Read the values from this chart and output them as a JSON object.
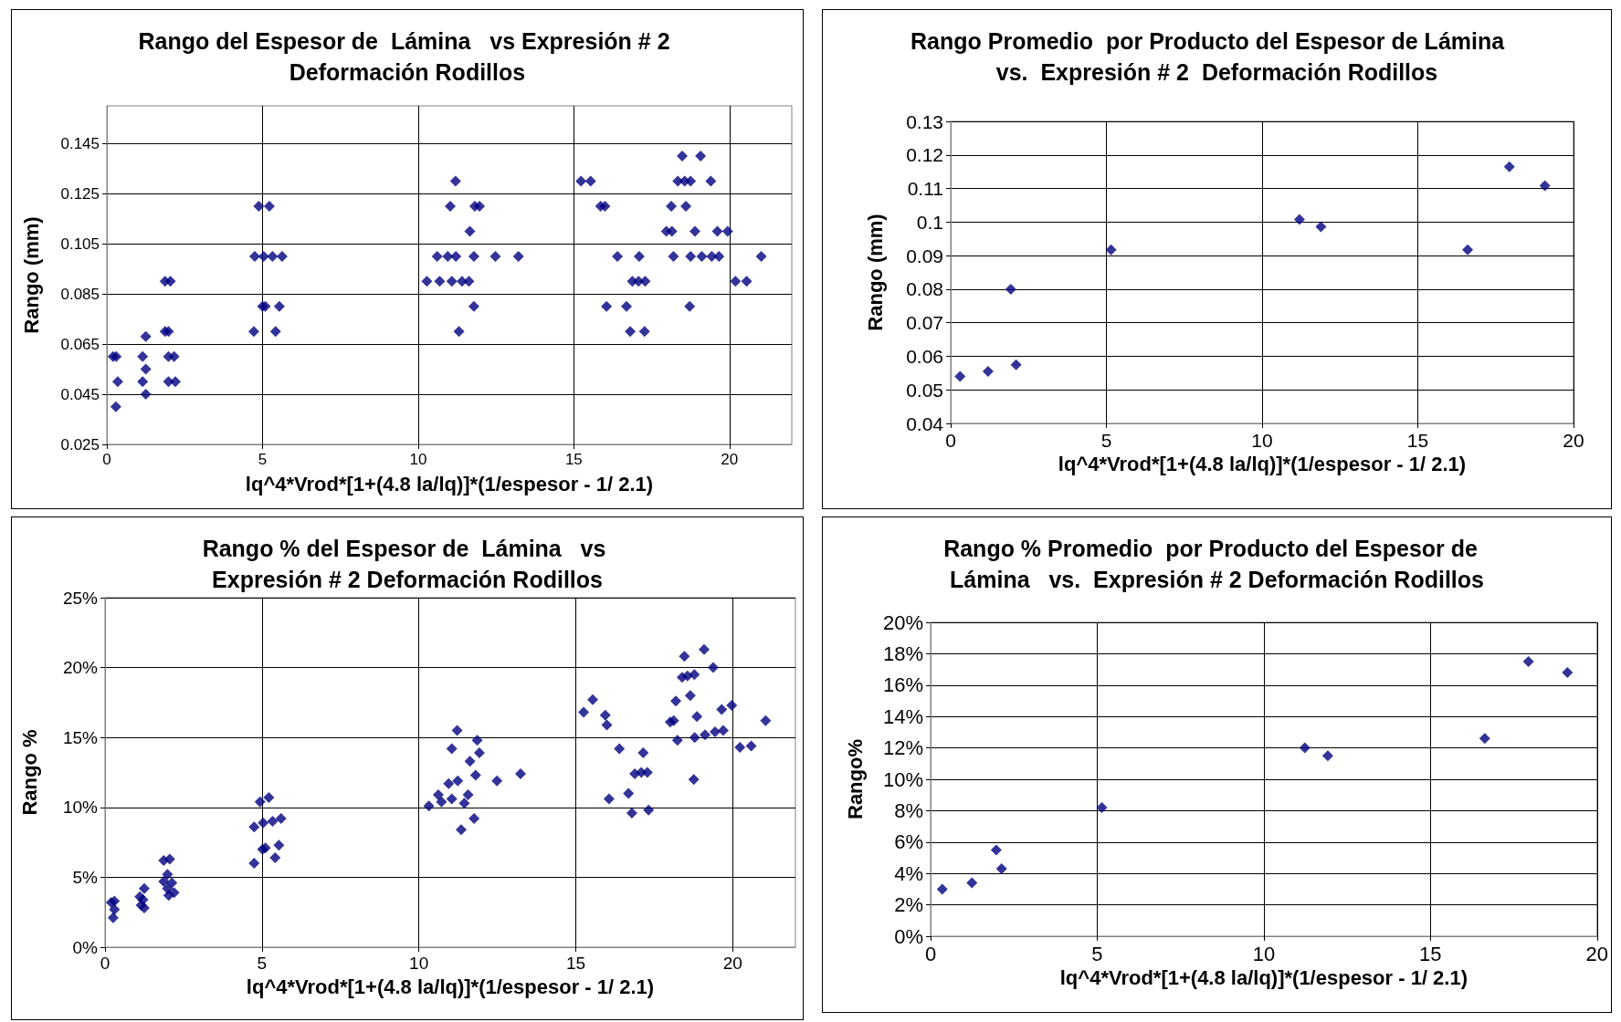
{
  "chart_data": [
    {
      "type": "scatter",
      "title": "Rango del Espesor de  Lámina   vs Expresión # 2 Deformación Rodillos",
      "xlabel": "lq^4*Vrod*[1+(4.8 la/lq)]*(1/espesor - 1/ 2.1)",
      "ylabel": "Rango (mm)",
      "color": "#000080",
      "marker": "diamond",
      "grid": true,
      "xlim": [
        0,
        22
      ],
      "xticks": [
        0,
        5,
        10,
        15,
        20
      ],
      "ylim": [
        0.025,
        0.16
      ],
      "yticks": [
        0.025,
        0.045,
        0.065,
        0.085,
        0.105,
        0.125,
        0.145
      ],
      "x": [
        0.2,
        0.3,
        0.35,
        0.29,
        1.15,
        1.15,
        1.25,
        1.25,
        1.25,
        1.87,
        2.04,
        1.87,
        1.98,
        1.98,
        2.16,
        1.98,
        2.2,
        4.88,
        5.22,
        4.75,
        5.04,
        5.32,
        5.63,
        5.0,
        5.09,
        5.54,
        4.72,
        5.42,
        11.2,
        11.03,
        11.82,
        11.97,
        11.66,
        10.61,
        10.95,
        11.21,
        11.79,
        12.48,
        13.22,
        10.28,
        10.69,
        11.08,
        11.41,
        11.63,
        11.79,
        11.31,
        15.23,
        15.54,
        18.34,
        18.56,
        18.75,
        19.4,
        18.48,
        19.07,
        15.86,
        16.0,
        18.13,
        18.6,
        17.97,
        18.15,
        18.89,
        19.61,
        19.94,
        16.4,
        17.1,
        18.2,
        18.75,
        19.11,
        19.43,
        19.66,
        21.02,
        16.88,
        17.08,
        17.29,
        20.19,
        20.55,
        16.05,
        16.69,
        18.72,
        16.81,
        17.27
      ],
      "values": [
        0.06,
        0.06,
        0.05,
        0.04,
        0.06,
        0.05,
        0.055,
        0.068,
        0.045,
        0.09,
        0.09,
        0.07,
        0.07,
        0.06,
        0.06,
        0.05,
        0.05,
        0.12,
        0.12,
        0.1,
        0.1,
        0.1,
        0.1,
        0.08,
        0.08,
        0.08,
        0.07,
        0.07,
        0.13,
        0.12,
        0.12,
        0.12,
        0.11,
        0.1,
        0.1,
        0.1,
        0.1,
        0.1,
        0.1,
        0.09,
        0.09,
        0.09,
        0.09,
        0.09,
        0.08,
        0.07,
        0.13,
        0.13,
        0.13,
        0.13,
        0.13,
        0.13,
        0.14,
        0.14,
        0.12,
        0.12,
        0.12,
        0.12,
        0.11,
        0.11,
        0.11,
        0.11,
        0.11,
        0.1,
        0.1,
        0.1,
        0.1,
        0.1,
        0.1,
        0.1,
        0.1,
        0.09,
        0.09,
        0.09,
        0.09,
        0.09,
        0.08,
        0.08,
        0.08,
        0.07,
        0.07
      ]
    },
    {
      "type": "scatter",
      "title": "Rango Promedio  por Producto del Espesor de Lámina   vs.  Expresión # 2  Deformación Rodillos",
      "xlabel": "lq^4*Vrod*[1+(4.8 la/lq)]*(1/espesor - 1/ 2.1)",
      "ylabel": "Rango (mm)",
      "color": "#000080",
      "marker": "diamond",
      "grid": true,
      "xlim": [
        0,
        20
      ],
      "xticks": [
        0,
        5,
        10,
        15,
        20
      ],
      "ylim": [
        0.04,
        0.13
      ],
      "yticks": [
        0.04,
        0.05,
        0.06,
        0.07,
        0.08,
        0.09,
        0.1,
        0.11,
        0.12,
        0.13
      ],
      "x": [
        0.3,
        1.2,
        1.93,
        2.1,
        5.15,
        11.2,
        11.89,
        16.6,
        17.94,
        19.08
      ],
      "values": [
        0.054,
        0.0555,
        0.08,
        0.0575,
        0.0917,
        0.1008,
        0.0986,
        0.0917,
        0.1165,
        0.1108
      ]
    },
    {
      "type": "scatter",
      "title": "Rango % del Espesor de  Lámina   vs Expresión # 2 Deformación Rodillos",
      "xlabel": "lq^4*Vrod*[1+(4.8 la/lq)]*(1/espesor - 1/ 2.1)",
      "ylabel": "Rango %",
      "color": "#000080",
      "marker": "diamond",
      "grid": true,
      "xlim": [
        0,
        22
      ],
      "xticks": [
        0,
        5,
        10,
        15,
        20
      ],
      "ylim": [
        0,
        0.25
      ],
      "yticks": [
        {
          "value": 0,
          "label": "0%"
        },
        {
          "value": 0.05,
          "label": "5%"
        },
        {
          "value": 0.1,
          "label": "10%"
        },
        {
          "value": 0.15,
          "label": "15%"
        },
        {
          "value": 0.2,
          "label": "20%"
        },
        {
          "value": 0.25,
          "label": "25%"
        }
      ],
      "x": [
        0.2,
        0.3,
        0.3,
        0.26,
        1.11,
        1.25,
        1.21,
        1.25,
        1.15,
        1.87,
        2.06,
        1.99,
        1.87,
        2.13,
        1.99,
        2.03,
        2.2,
        4.94,
        5.22,
        4.75,
        5.04,
        5.34,
        5.61,
        5.02,
        5.11,
        5.54,
        4.75,
        5.42,
        11.22,
        11.05,
        11.86,
        11.93,
        11.63,
        11.81,
        12.49,
        13.24,
        10.95,
        11.24,
        10.62,
        10.72,
        11.05,
        11.57,
        11.45,
        10.32,
        11.76,
        11.35,
        15.25,
        15.54,
        15.94,
        15.99,
        16.39,
        17.15,
        16.88,
        17.09,
        17.28,
        16.06,
        16.68,
        16.79,
        17.32,
        18.46,
        19.09,
        19.38,
        18.39,
        18.56,
        18.78,
        18.65,
        18.19,
        18.01,
        18.12,
        18.86,
        18.24,
        19.65,
        19.97,
        18.79,
        19.12,
        19.44,
        19.7,
        18.76,
        20.23,
        20.59,
        21.05
      ],
      "values": [
        0.032,
        0.033,
        0.027,
        0.021,
        0.036,
        0.042,
        0.034,
        0.028,
        0.03,
        0.062,
        0.063,
        0.052,
        0.047,
        0.046,
        0.042,
        0.037,
        0.039,
        0.104,
        0.107,
        0.086,
        0.089,
        0.09,
        0.092,
        0.07,
        0.071,
        0.073,
        0.06,
        0.064,
        0.155,
        0.142,
        0.148,
        0.139,
        0.133,
        0.123,
        0.119,
        0.124,
        0.117,
        0.119,
        0.109,
        0.104,
        0.106,
        0.109,
        0.103,
        0.101,
        0.092,
        0.084,
        0.168,
        0.177,
        0.166,
        0.159,
        0.142,
        0.139,
        0.124,
        0.125,
        0.125,
        0.106,
        0.11,
        0.096,
        0.098,
        0.208,
        0.213,
        0.2,
        0.193,
        0.194,
        0.195,
        0.18,
        0.176,
        0.161,
        0.162,
        0.165,
        0.148,
        0.17,
        0.173,
        0.15,
        0.152,
        0.154,
        0.155,
        0.12,
        0.143,
        0.144,
        0.162
      ]
    },
    {
      "type": "scatter",
      "title": "Rango % Promedio  por Producto del Espesor de  Lámina   vs.  Expresión # 2 Deformación Rodillos",
      "xlabel": "lq^4*Vrod*[1+(4.8 la/lq)]*(1/espesor - 1/ 2.1)",
      "ylabel": "Rango%",
      "color": "#000080",
      "marker": "diamond",
      "grid": true,
      "xlim": [
        0,
        20
      ],
      "xticks": [
        0,
        5,
        10,
        15,
        20
      ],
      "ylim": [
        0,
        0.2
      ],
      "yticks": [
        {
          "value": 0,
          "label": "0%"
        },
        {
          "value": 0.02,
          "label": "2%"
        },
        {
          "value": 0.04,
          "label": "4%"
        },
        {
          "value": 0.06,
          "label": "6%"
        },
        {
          "value": 0.08,
          "label": "8%"
        },
        {
          "value": 0.1,
          "label": "10%"
        },
        {
          "value": 0.12,
          "label": "12%"
        },
        {
          "value": 0.14,
          "label": "14%"
        },
        {
          "value": 0.16,
          "label": "16%"
        },
        {
          "value": 0.18,
          "label": "18%"
        },
        {
          "value": 0.2,
          "label": "20%"
        }
      ],
      "x": [
        0.35,
        1.24,
        1.97,
        2.13,
        5.14,
        11.23,
        11.92,
        16.63,
        17.94,
        19.11
      ],
      "values": [
        0.03,
        0.034,
        0.055,
        0.043,
        0.082,
        0.12,
        0.115,
        0.126,
        0.175,
        0.168
      ]
    }
  ]
}
